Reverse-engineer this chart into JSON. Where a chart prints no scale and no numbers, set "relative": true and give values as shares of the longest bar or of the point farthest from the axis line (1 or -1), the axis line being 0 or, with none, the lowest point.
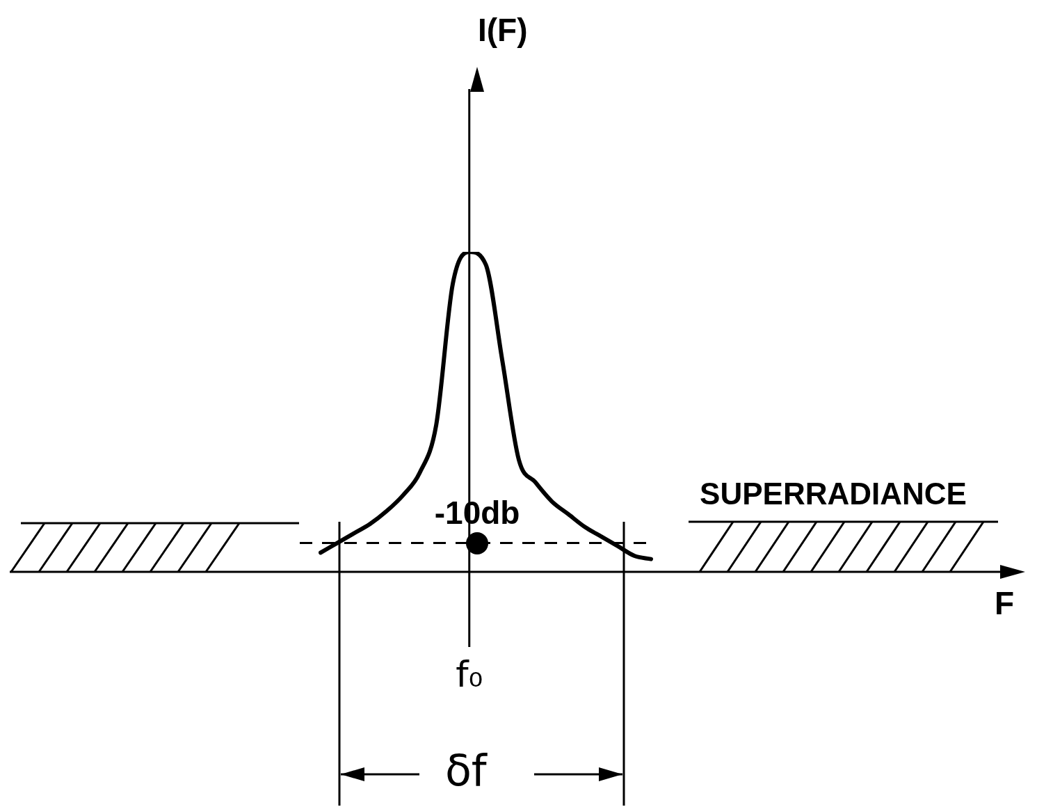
{
  "chart_data": {
    "type": "line",
    "relative": true,
    "categories": [
      null,
      null,
      null,
      null,
      null,
      null,
      null,
      null,
      null,
      null,
      null,
      null,
      null,
      null,
      null,
      null,
      null,
      null,
      null,
      null,
      null
    ],
    "series": [
      {
        "color": "#000000",
        "values": [
          0.06,
          0.09,
          0.12,
          0.15,
          0.19,
          0.24,
          0.31,
          0.46,
          0.9,
          1,
          0.96,
          0.66,
          0.35,
          0.28,
          0.22,
          0.18,
          0.14,
          0.11,
          0.08,
          0.05,
          0.04
        ]
      }
    ],
    "ref_lines": [
      {
        "axis": "y",
        "value": 0.09,
        "label": "-10db",
        "line_style": "dashed"
      }
    ],
    "annotations": [
      "I(F)",
      "F",
      "SUPERRADIANCE",
      "f₀",
      "δf"
    ],
    "legend": false,
    "marker": "none",
    "line_style": "solid"
  }
}
